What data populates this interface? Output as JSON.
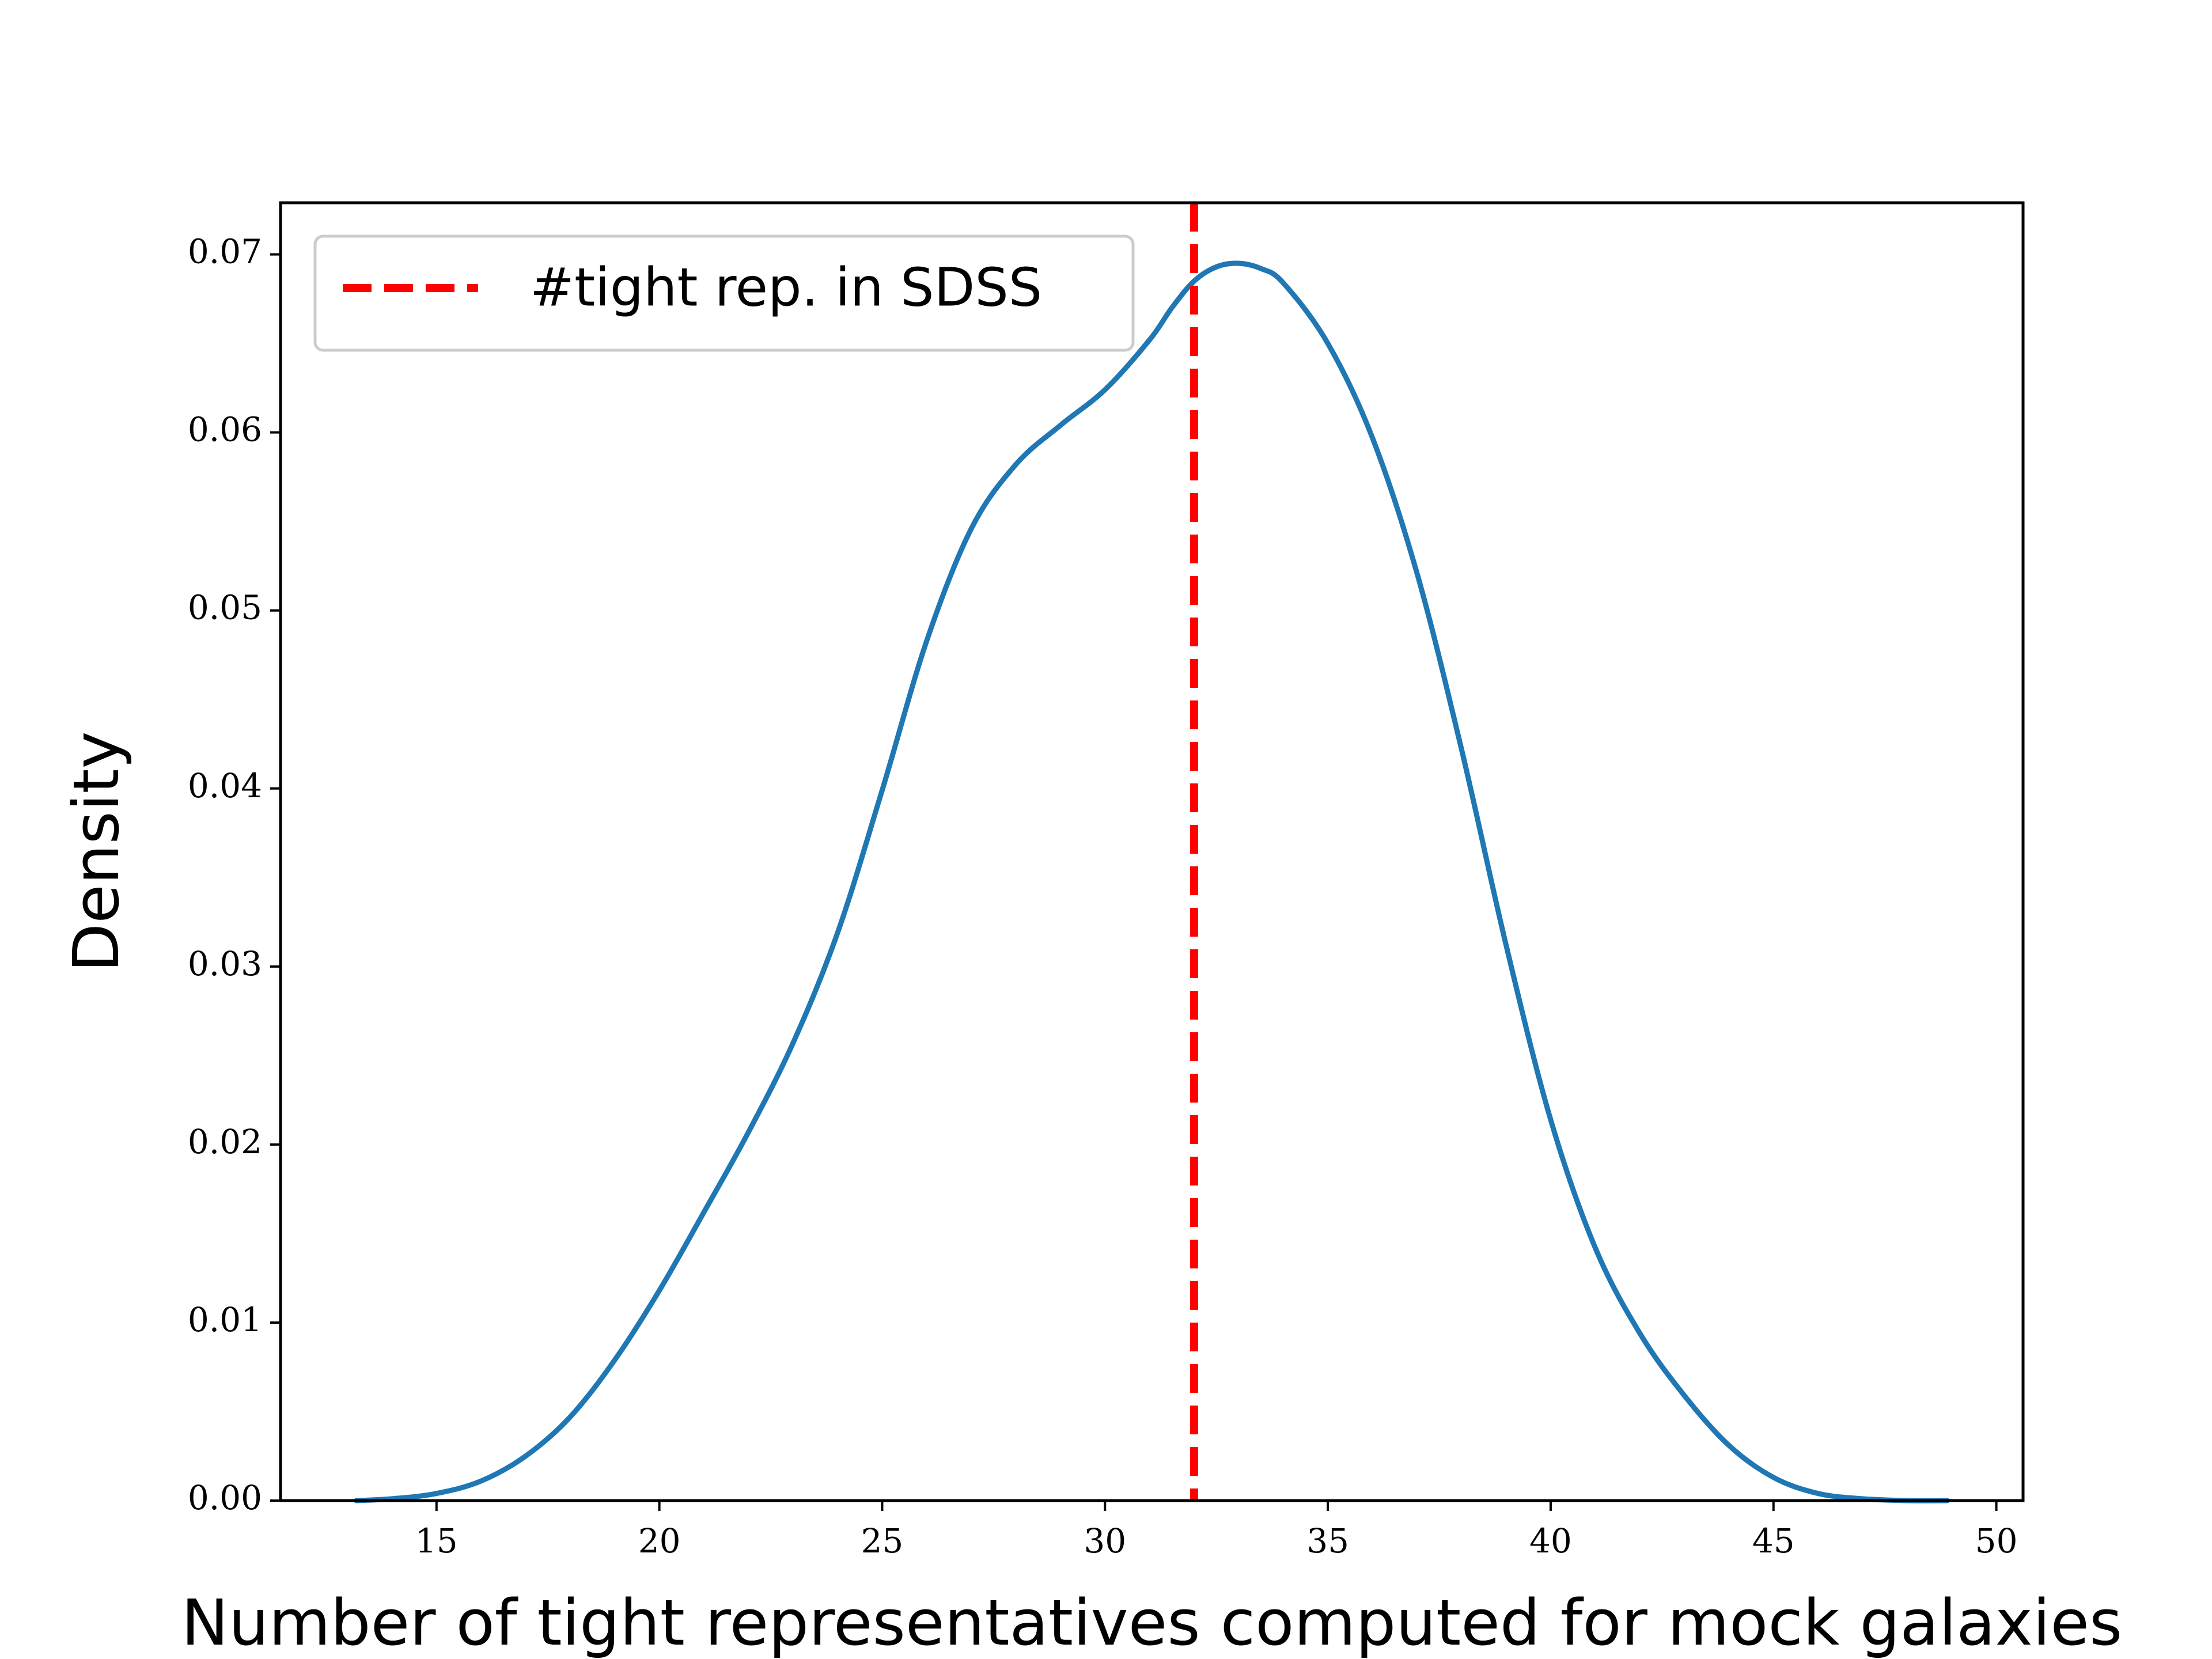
{
  "chart_data": {
    "type": "line",
    "xlabel": "Number of tight representatives computed for mock galaxies",
    "ylabel": "Density",
    "xlim": [
      11.5,
      50.6
    ],
    "ylim": [
      0.0,
      0.0729
    ],
    "xticks": [
      15,
      20,
      25,
      30,
      35,
      40,
      45,
      50
    ],
    "xtick_labels": [
      "15",
      "20",
      "25",
      "30",
      "35",
      "40",
      "45",
      "50"
    ],
    "yticks": [
      0.0,
      0.01,
      0.02,
      0.03,
      0.04,
      0.05,
      0.06,
      0.07
    ],
    "ytick_labels": [
      "0.00",
      "0.01",
      "0.02",
      "0.03",
      "0.04",
      "0.05",
      "0.06",
      "0.07"
    ],
    "grid": false,
    "legend_position": "top-left",
    "series": [
      {
        "type": "density",
        "color": "#1f77b4",
        "x": [
          13.2,
          14.0,
          15.0,
          16.0,
          17.0,
          18.0,
          19.0,
          20.0,
          21.0,
          22.0,
          23.0,
          24.0,
          25.0,
          26.0,
          27.0,
          28.0,
          29.0,
          30.0,
          31.0,
          31.5,
          32.0,
          32.5,
          33.0,
          33.5,
          34.0,
          35.0,
          36.0,
          37.0,
          38.0,
          39.0,
          40.0,
          41.0,
          42.0,
          43.0,
          44.0,
          45.0,
          46.0,
          47.0,
          48.0,
          48.9
        ],
        "y": [
          0.0,
          0.0001,
          0.0004,
          0.0011,
          0.0025,
          0.0047,
          0.0079,
          0.0118,
          0.0162,
          0.0207,
          0.0257,
          0.0319,
          0.0399,
          0.0483,
          0.0546,
          0.0582,
          0.0604,
          0.0624,
          0.0652,
          0.067,
          0.0685,
          0.0693,
          0.0695,
          0.0692,
          0.0684,
          0.065,
          0.0597,
          0.0521,
          0.0422,
          0.0312,
          0.0214,
          0.0142,
          0.0094,
          0.0059,
          0.0031,
          0.0013,
          0.0004,
          0.0001,
          0.0,
          0.0
        ]
      },
      {
        "type": "vline",
        "name": "#tight rep. in SDSS",
        "x": 32,
        "color": "#ff0000",
        "style": "dashed"
      }
    ]
  }
}
